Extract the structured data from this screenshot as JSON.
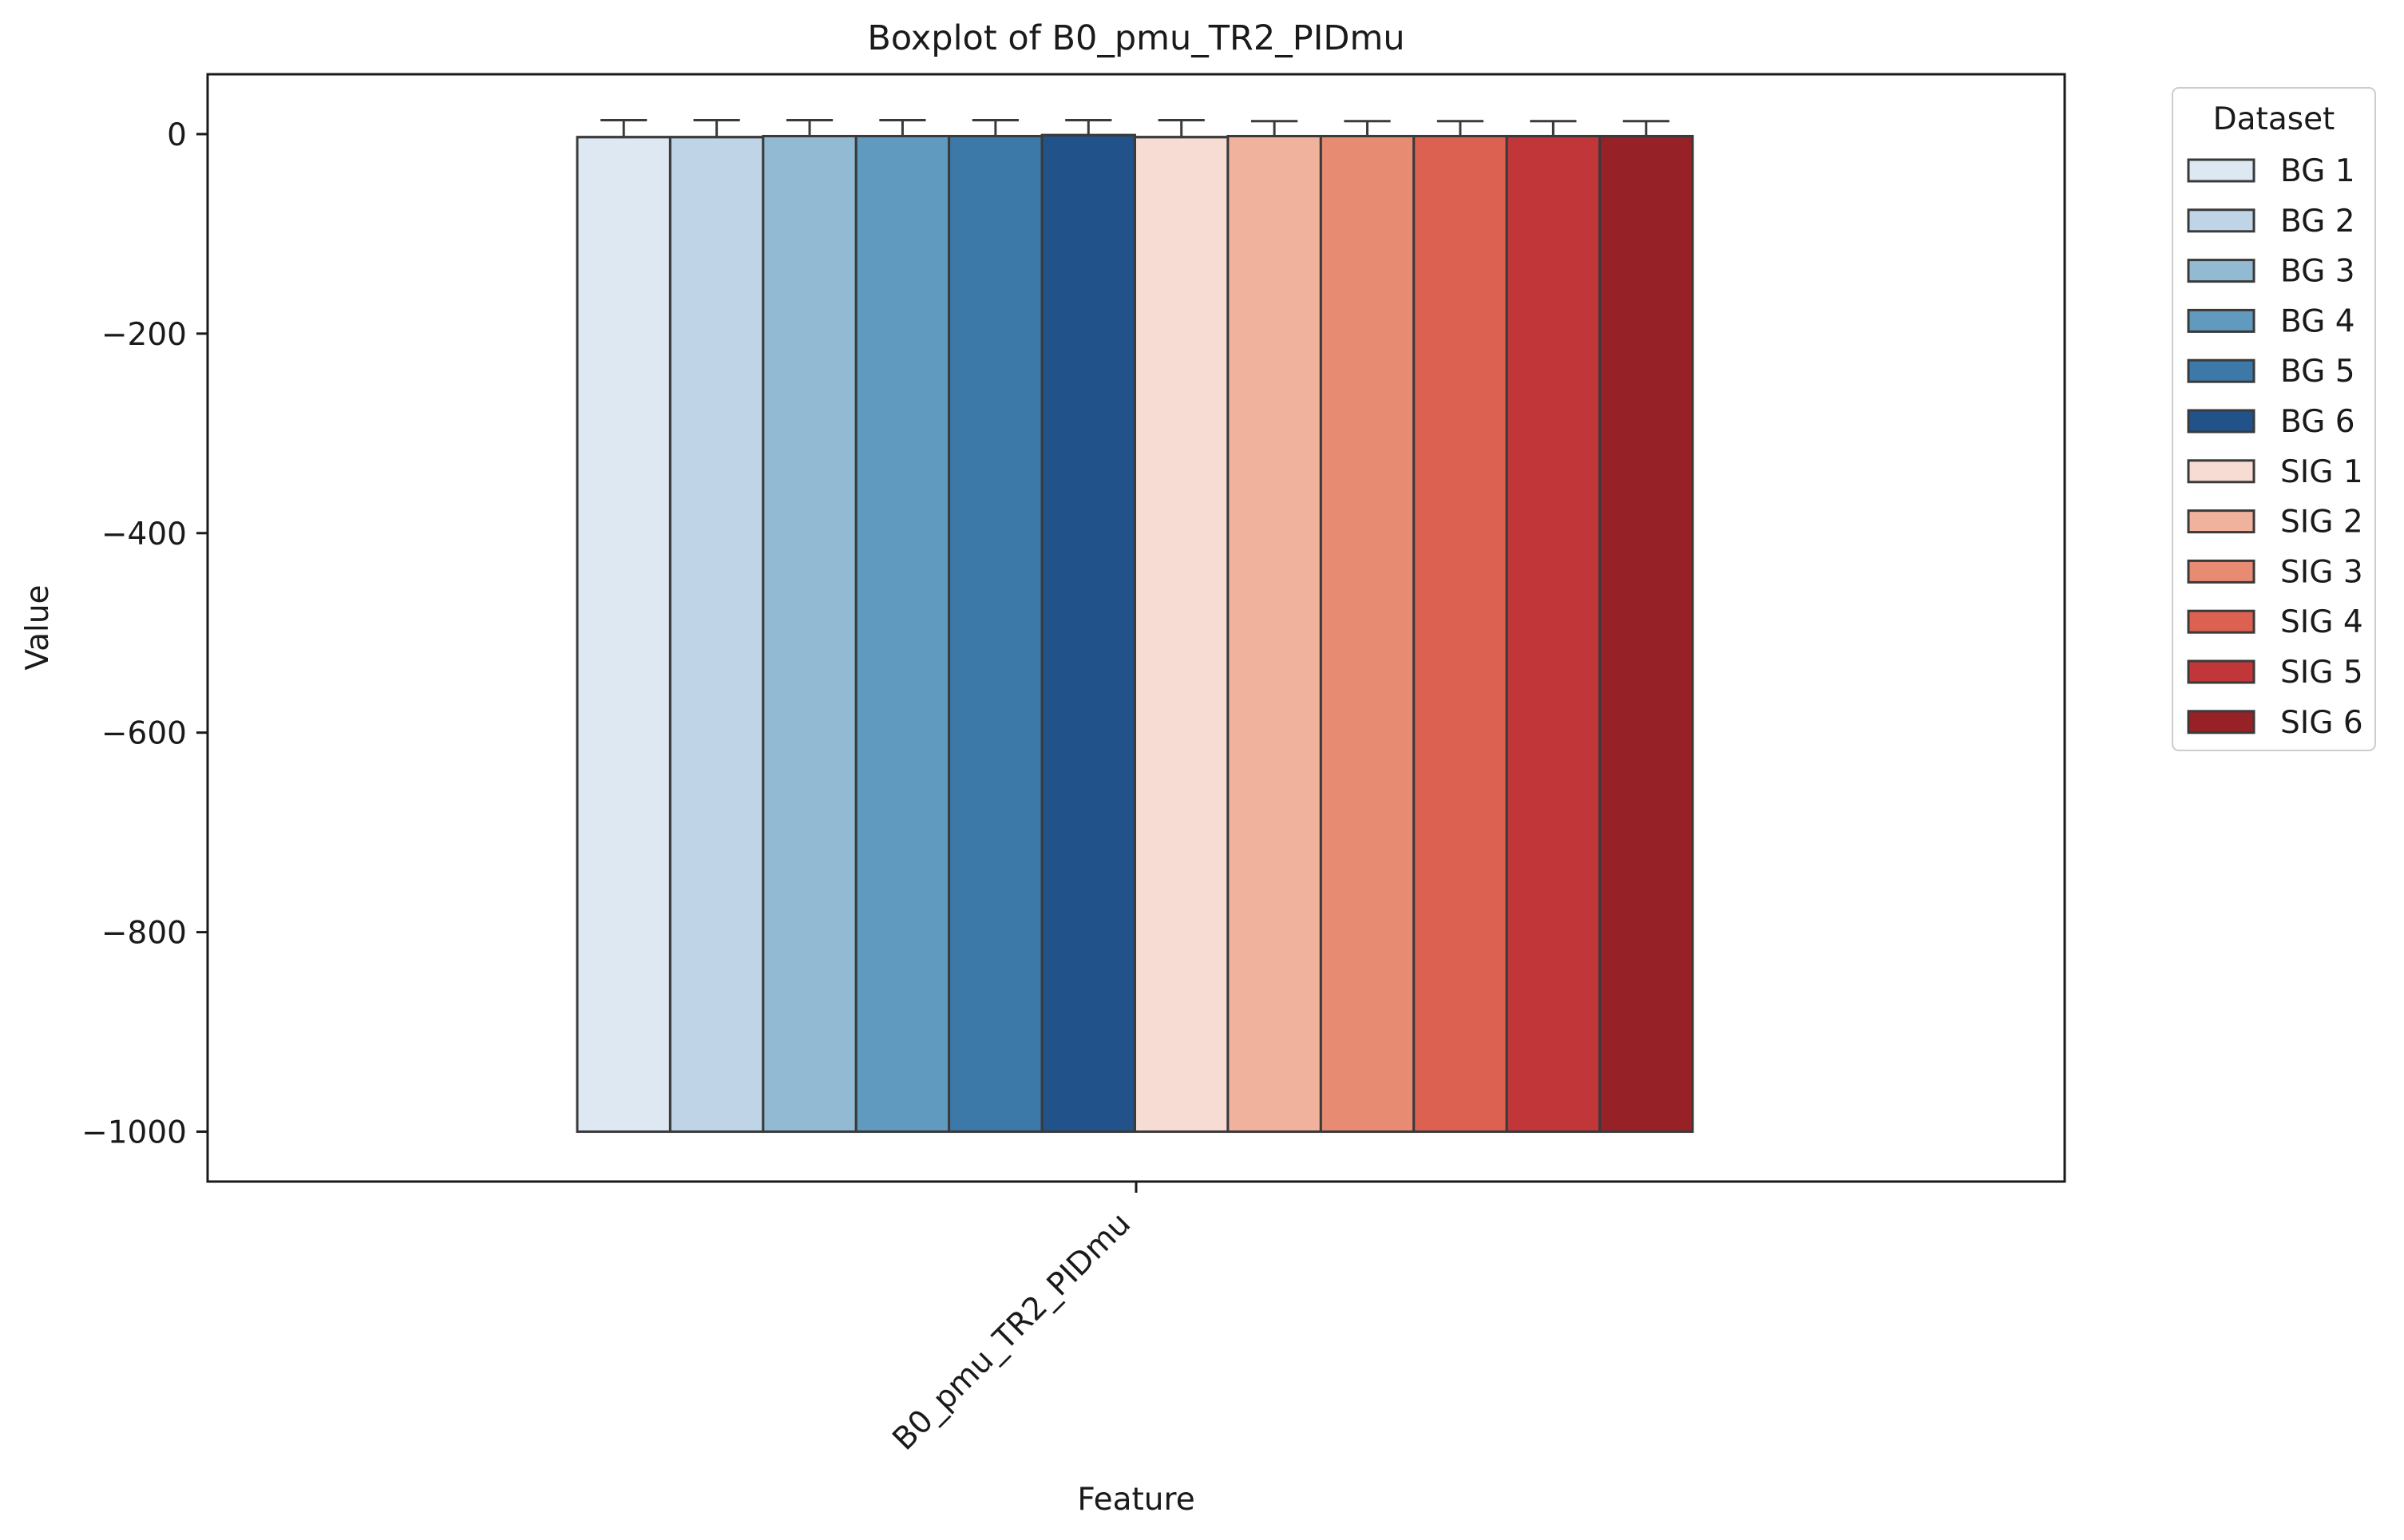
{
  "chart_data": {
    "type": "boxplot",
    "title": "Boxplot of B0_pmu_TR2_PIDmu",
    "xlabel": "Feature",
    "ylabel": "Value",
    "categories": [
      "B0_pmu_TR2_PIDmu"
    ],
    "ylim": [
      -1050,
      60
    ],
    "yticks": [
      0,
      -200,
      -400,
      -600,
      -800,
      -1000
    ],
    "ytick_labels": [
      "0",
      "−200",
      "−400",
      "−600",
      "−800",
      "−1000"
    ],
    "legend": {
      "title": "Dataset",
      "placement": "outside-right-top"
    },
    "series": [
      {
        "name": "BG 1",
        "color": "#dde8f3",
        "whisker_low": -1000,
        "q1": -1000,
        "median": -3,
        "q3": -3,
        "whisker_high": 14
      },
      {
        "name": "BG 2",
        "color": "#bfd4e6",
        "whisker_low": -1000,
        "q1": -1000,
        "median": -3,
        "q3": -3,
        "whisker_high": 14
      },
      {
        "name": "BG 3",
        "color": "#92bbd3",
        "whisker_low": -1000,
        "q1": -1000,
        "median": -2,
        "q3": -2,
        "whisker_high": 14
      },
      {
        "name": "BG 4",
        "color": "#619abf",
        "whisker_low": -1000,
        "q1": -1000,
        "median": -2,
        "q3": -2,
        "whisker_high": 14
      },
      {
        "name": "BG 5",
        "color": "#3c78a8",
        "whisker_low": -1000,
        "q1": -1000,
        "median": -2,
        "q3": -2,
        "whisker_high": 14
      },
      {
        "name": "BG 6",
        "color": "#21528a",
        "whisker_low": -1000,
        "q1": -1000,
        "median": -1,
        "q3": -1,
        "whisker_high": 14
      },
      {
        "name": "SIG 1",
        "color": "#f6dcd2",
        "whisker_low": -1000,
        "q1": -1000,
        "median": -3,
        "q3": -3,
        "whisker_high": 14
      },
      {
        "name": "SIG 2",
        "color": "#f0b29d",
        "whisker_low": -1000,
        "q1": -1000,
        "median": -2,
        "q3": -2,
        "whisker_high": 13
      },
      {
        "name": "SIG 3",
        "color": "#e78b72",
        "whisker_low": -1000,
        "q1": -1000,
        "median": -2,
        "q3": -2,
        "whisker_high": 13
      },
      {
        "name": "SIG 4",
        "color": "#dc6151",
        "whisker_low": -1000,
        "q1": -1000,
        "median": -2,
        "q3": -2,
        "whisker_high": 13
      },
      {
        "name": "SIG 5",
        "color": "#c03639",
        "whisker_low": -1000,
        "q1": -1000,
        "median": -2,
        "q3": -2,
        "whisker_high": 13
      },
      {
        "name": "SIG 6",
        "color": "#962227",
        "whisker_low": -1000,
        "q1": -1000,
        "median": -2,
        "q3": -2,
        "whisker_high": 13
      }
    ]
  }
}
